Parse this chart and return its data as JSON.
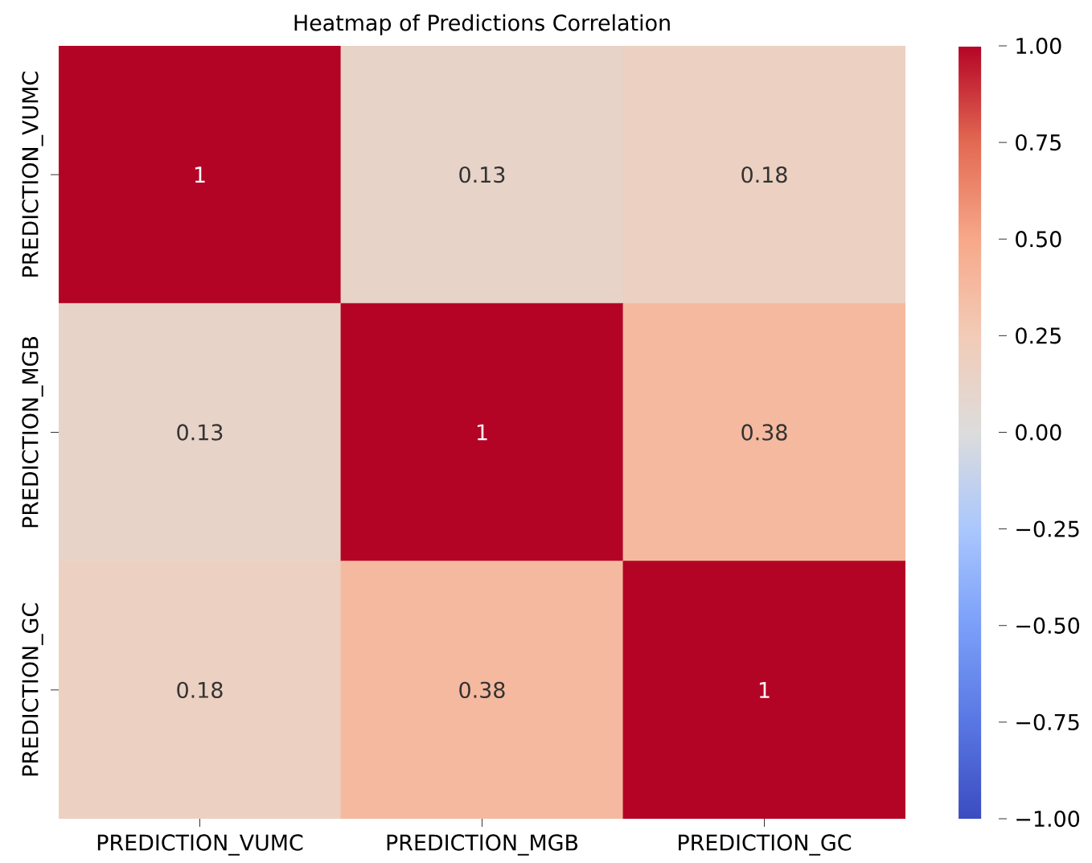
{
  "chart_data": {
    "type": "heatmap",
    "title": "Heatmap of Predictions Correlation",
    "categories": [
      "PREDICTION_VUMC",
      "PREDICTION_MGB",
      "PREDICTION_GC"
    ],
    "y_categories": [
      "PREDICTION_VUMC",
      "PREDICTION_MGB",
      "PREDICTION_GC"
    ],
    "cells": [
      [
        1,
        0.13,
        0.18
      ],
      [
        0.13,
        1,
        0.38
      ],
      [
        0.18,
        0.38,
        1
      ]
    ],
    "data_labels": true,
    "clim": [
      -1,
      1
    ],
    "cticks": [
      {
        "value": -1,
        "label": "−1.00"
      },
      {
        "value": -0.75,
        "label": "−0.75"
      },
      {
        "value": -0.5,
        "label": "−0.50"
      },
      {
        "value": -0.25,
        "label": "−0.25"
      },
      {
        "value": 0,
        "label": "0.00"
      },
      {
        "value": 0.25,
        "label": "0.25"
      },
      {
        "value": 0.5,
        "label": "0.50"
      },
      {
        "value": 0.75,
        "label": "0.75"
      },
      {
        "value": 1,
        "label": "1.00"
      }
    ]
  }
}
